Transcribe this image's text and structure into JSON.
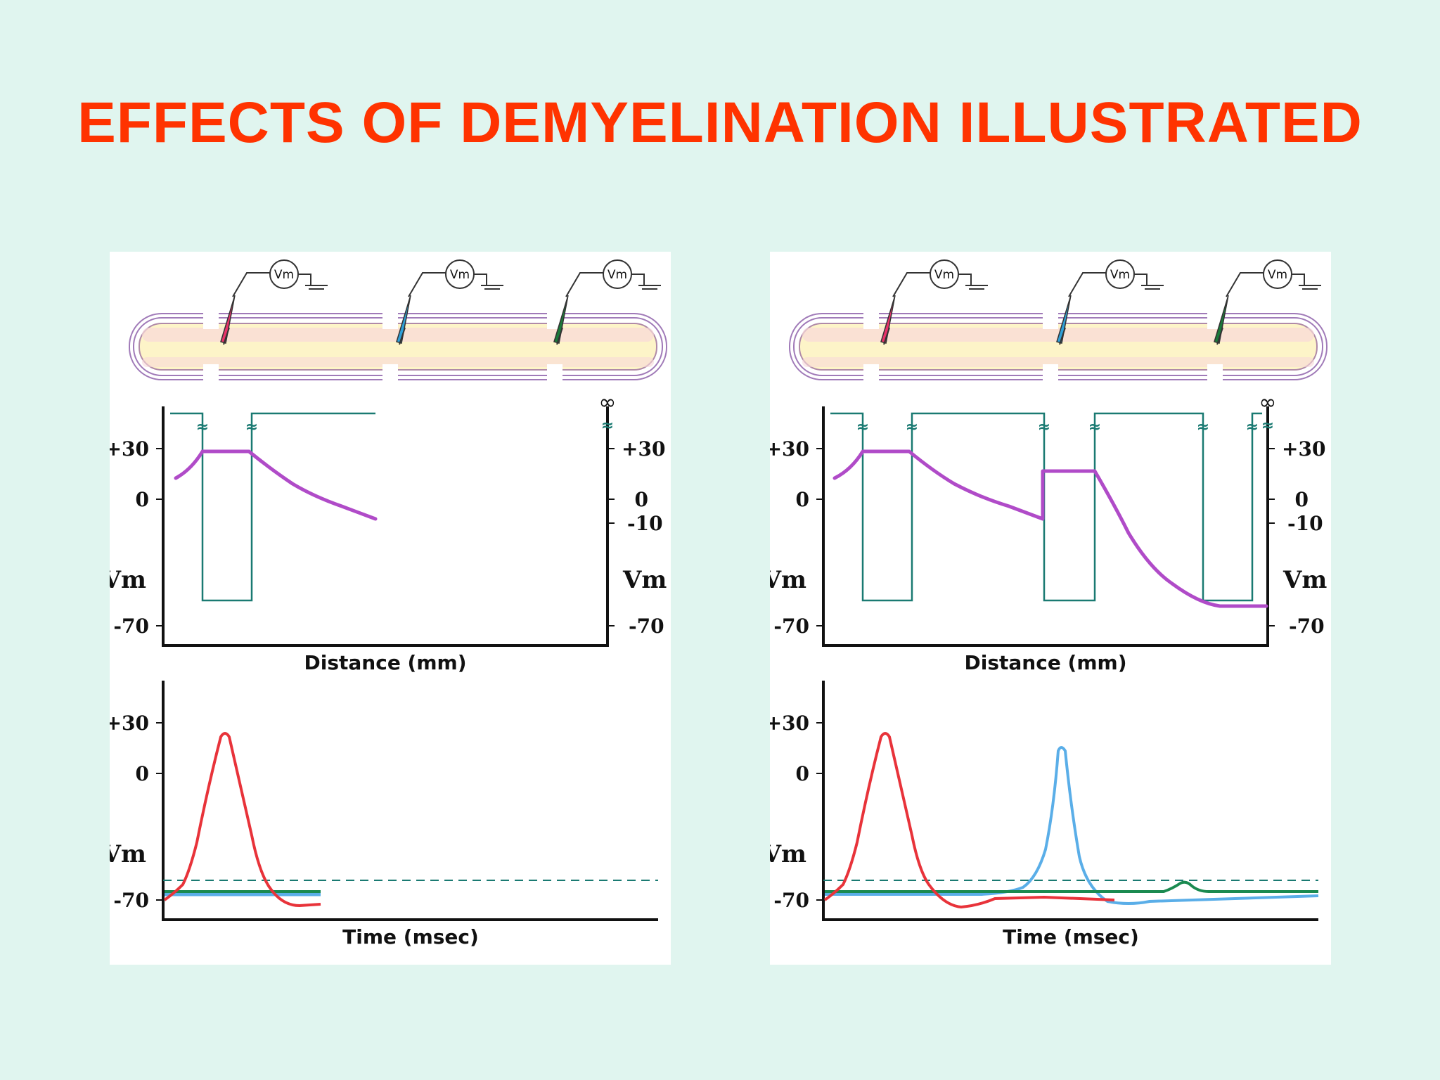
{
  "title": "EFFECTS OF DEMYELINATION ILLUSTRATED",
  "meter_label": "Vm",
  "infinity_symbol": "∞",
  "break_symbol": "≈",
  "colors": {
    "title": "#ff3300",
    "background": "#e0f5ef",
    "membrane_trace": "#b04bc8",
    "myelin_sheath_line": "#1a7a72",
    "electrode_1_red": "#e8336a",
    "electrode_2_blue": "#2fa0d8",
    "electrode_3_green": "#1a7a3a",
    "recording_red": "#e8333a",
    "recording_blue": "#5aaee8",
    "recording_green": "#1a8a50"
  },
  "panels": [
    {
      "id": "left",
      "distance_chart": {
        "y_left_ticks": [
          "+30",
          "0",
          "Vm",
          "-70"
        ],
        "y_right_ticks": [
          "+30",
          "0",
          "-10",
          "Vm",
          "-70"
        ],
        "xlabel": "Distance (mm)"
      },
      "time_chart": {
        "y_ticks": [
          "+30",
          "0",
          "Vm",
          "-70"
        ],
        "xlabel": "Time (msec)"
      }
    },
    {
      "id": "right",
      "distance_chart": {
        "y_left_ticks": [
          "+30",
          "0",
          "Vm",
          "-70"
        ],
        "y_right_ticks": [
          "+30",
          "0",
          "-10",
          "Vm",
          "-70"
        ],
        "xlabel": "Distance (mm)"
      },
      "time_chart": {
        "y_ticks": [
          "+30",
          "0",
          "Vm",
          "-70"
        ],
        "xlabel": "Time (msec)"
      }
    }
  ]
}
